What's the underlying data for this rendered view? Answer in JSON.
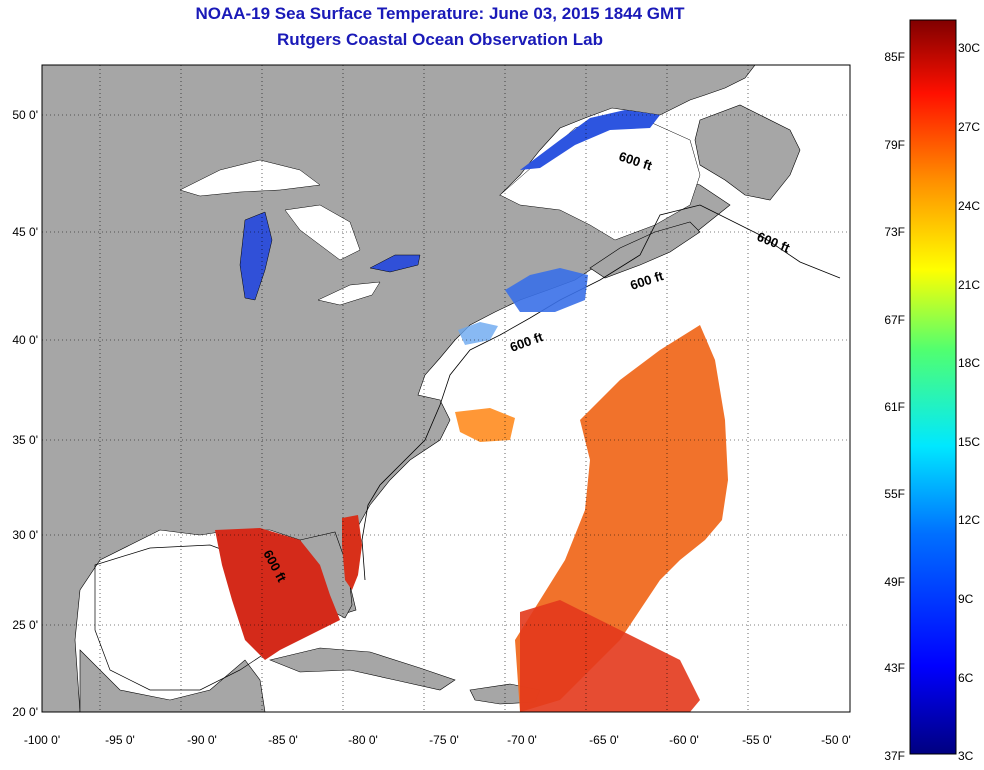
{
  "title": "NOAA-19 Sea Surface Temperature:  June 03, 2015 1844 GMT",
  "subtitle": "Rutgers Coastal Ocean Observation Lab",
  "axes": {
    "lon_ticks": [
      "-100 0'",
      "-95 0'",
      "-90 0'",
      "-85 0'",
      "-80 0'",
      "-75 0'",
      "-70 0'",
      "-65 0'",
      "-60 0'",
      "-55 0'",
      "-50 0'"
    ],
    "lat_ticks": [
      "50 0'",
      "45 0'",
      "40 0'",
      "35 0'",
      "30 0'",
      "25 0'",
      "20 0'"
    ]
  },
  "contour_labels": [
    "600 ft",
    "600 ft",
    "600 ft",
    "600 ft",
    "600 ft"
  ],
  "colorbar": {
    "fahrenheit": [
      "85F",
      "79F",
      "73F",
      "67F",
      "61F",
      "55F",
      "49F",
      "43F",
      "37F"
    ],
    "celsius": [
      "30C",
      "27C",
      "24C",
      "21C",
      "18C",
      "15C",
      "12C",
      "9C",
      "6C",
      "3C"
    ]
  },
  "colors": {
    "title": "#1a1ab8",
    "land": "#a6a6a6",
    "ocean": "#ffffff",
    "warm": "#e0301e",
    "cold": "#2040e0"
  }
}
